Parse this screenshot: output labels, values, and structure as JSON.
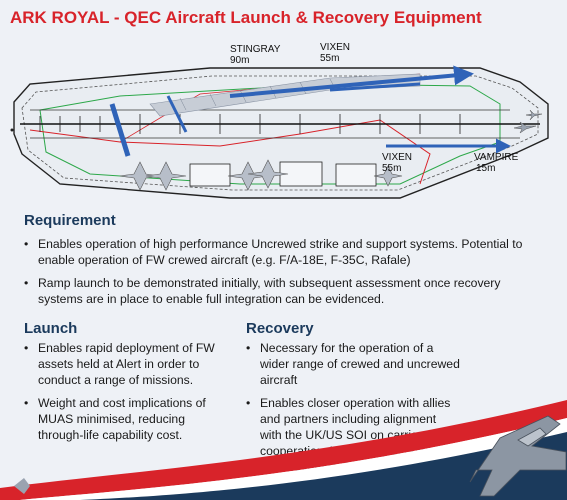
{
  "title": "ARK ROYAL - QEC Aircraft Launch & Recovery Equipment",
  "diagram_labels": {
    "stingray": {
      "name": "STINGRAY",
      "length": "90m"
    },
    "vixen_top": {
      "name": "VIXEN",
      "length": "55m"
    },
    "vixen_bottom": {
      "name": "VIXEN",
      "length": "55m"
    },
    "vampire": {
      "name": "VAMPIRE",
      "length": "15m"
    }
  },
  "requirement": {
    "heading": "Requirement",
    "bullets": [
      "Enables operation of high performance Uncrewed strike and support systems. Potential to enable operation of FW crewed aircraft (e.g. F/A-18E, F-35C, Rafale)",
      "Ramp launch to be demonstrated initially, with subsequent assessment once recovery systems are in place to enable full integration can be evidenced."
    ]
  },
  "launch": {
    "heading": "Launch",
    "bullets": [
      "Enables rapid deployment of FW assets held at Alert in order to conduct a range of missions.",
      "Weight and cost implications of MUAS minimised, reducing through-life capability cost."
    ]
  },
  "recovery": {
    "heading": "Recovery",
    "bullets": [
      "Necessary for the operation of a wider range of crewed and uncrewed aircraft",
      "Enables closer operation with allies and partners including alignment with the UK/US SOI on carrier cooperation. VIXEN will depend this for recovery to QEC."
    ]
  },
  "colors": {
    "title_red": "#d8232a",
    "heading_navy": "#1b3a5c",
    "launch_blue": "#2f63b8",
    "background": "#eef1f6"
  }
}
